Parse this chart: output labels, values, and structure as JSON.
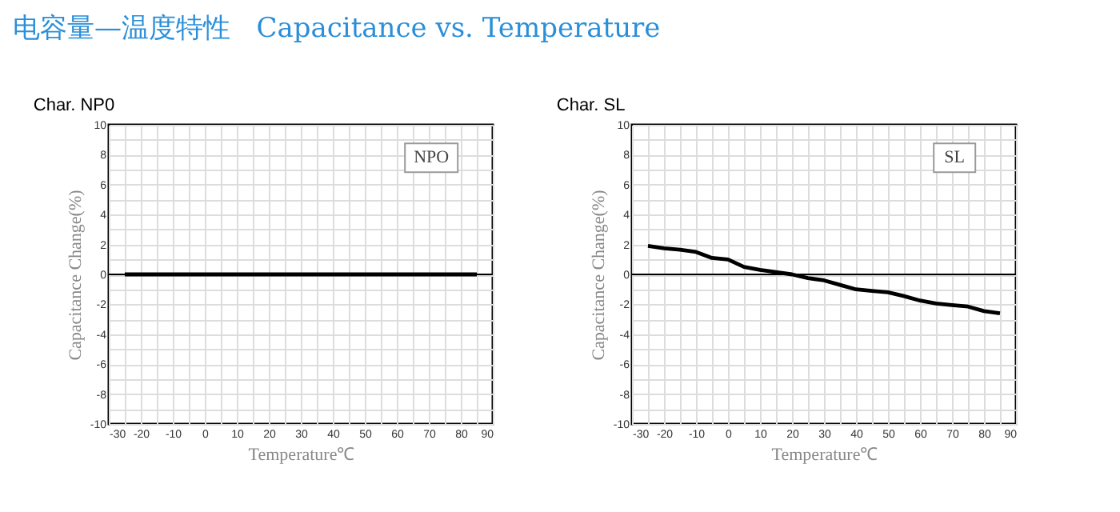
{
  "chart_data": [
    {
      "type": "other",
      "title": "电容量—温度特性   Capacitance vs. Temperature"
    },
    {
      "type": "line",
      "title": "Char. NP0",
      "xlabel": "Temperature℃",
      "ylabel": "Capacitance Change(%)",
      "annotations": [
        "NPO"
      ],
      "x": [
        -25,
        85
      ],
      "series": [
        {
          "color": "#000000",
          "values": [
            0,
            0
          ]
        }
      ],
      "xlim": [
        -30,
        90
      ],
      "ylim": [
        -10,
        10
      ],
      "xticks": [
        -30,
        {
          "value": -25,
          "label": null
        },
        -20,
        {
          "value": -15,
          "label": null
        },
        -10,
        {
          "value": -5,
          "label": null
        },
        0,
        {
          "value": 5,
          "label": null
        },
        10,
        {
          "value": 15,
          "label": null
        },
        20,
        {
          "value": 25,
          "label": null
        },
        30,
        {
          "value": 35,
          "label": null
        },
        40,
        {
          "value": 45,
          "label": null
        },
        50,
        {
          "value": 55,
          "label": null
        },
        60,
        {
          "value": 65,
          "label": null
        },
        70,
        {
          "value": 75,
          "label": null
        },
        80,
        {
          "value": 85,
          "label": null
        },
        90
      ],
      "yticks": [
        -10,
        {
          "value": -9,
          "label": null
        },
        -8,
        {
          "value": -7,
          "label": null
        },
        -6,
        {
          "value": -5,
          "label": null
        },
        -4,
        {
          "value": -3,
          "label": null
        },
        -2,
        {
          "value": -1,
          "label": null
        },
        0,
        {
          "value": 1,
          "label": null
        },
        2,
        {
          "value": 3,
          "label": null
        },
        4,
        {
          "value": 5,
          "label": null
        },
        6,
        {
          "value": 7,
          "label": null
        },
        8,
        {
          "value": 9,
          "label": null
        },
        10
      ],
      "ref_lines": [
        {
          "axis": "y",
          "value": 0,
          "color": "#000000"
        }
      ],
      "grid": true
    },
    {
      "type": "line",
      "title": "Char. SL",
      "xlabel": "Temperature℃",
      "ylabel": "Capacitance Change(%)",
      "annotations": [
        "SL"
      ],
      "x": [
        -25,
        -20,
        -15,
        -10,
        -5,
        0,
        5,
        10,
        15,
        20,
        25,
        30,
        35,
        40,
        45,
        50,
        55,
        60,
        65,
        70,
        75,
        80,
        85
      ],
      "series": [
        {
          "color": "#000000",
          "values": [
            1.9,
            1.75,
            1.65,
            1.5,
            1.1,
            1.0,
            0.5,
            0.3,
            0.15,
            0.0,
            -0.25,
            -0.4,
            -0.7,
            -1.0,
            -1.1,
            -1.2,
            -1.45,
            -1.75,
            -1.95,
            -2.05,
            -2.15,
            -2.45,
            -2.6
          ]
        }
      ],
      "xlim": [
        -30,
        90
      ],
      "ylim": [
        -10,
        10
      ],
      "xticks": [
        -30,
        {
          "value": -25,
          "label": null
        },
        -20,
        {
          "value": -15,
          "label": null
        },
        -10,
        {
          "value": -5,
          "label": null
        },
        0,
        {
          "value": 5,
          "label": null
        },
        10,
        {
          "value": 15,
          "label": null
        },
        20,
        {
          "value": 25,
          "label": null
        },
        30,
        {
          "value": 35,
          "label": null
        },
        40,
        {
          "value": 45,
          "label": null
        },
        50,
        {
          "value": 55,
          "label": null
        },
        60,
        {
          "value": 65,
          "label": null
        },
        70,
        {
          "value": 75,
          "label": null
        },
        80,
        {
          "value": 85,
          "label": null
        },
        90
      ],
      "yticks": [
        -10,
        {
          "value": -9,
          "label": null
        },
        -8,
        {
          "value": -7,
          "label": null
        },
        -6,
        {
          "value": -5,
          "label": null
        },
        -4,
        {
          "value": -3,
          "label": null
        },
        -2,
        {
          "value": -1,
          "label": null
        },
        0,
        {
          "value": 1,
          "label": null
        },
        2,
        {
          "value": 3,
          "label": null
        },
        4,
        {
          "value": 5,
          "label": null
        },
        6,
        {
          "value": 7,
          "label": null
        },
        8,
        {
          "value": 9,
          "label": null
        },
        10
      ],
      "ref_lines": [
        {
          "axis": "y",
          "value": 0,
          "color": "#000000"
        }
      ],
      "grid": true
    }
  ]
}
